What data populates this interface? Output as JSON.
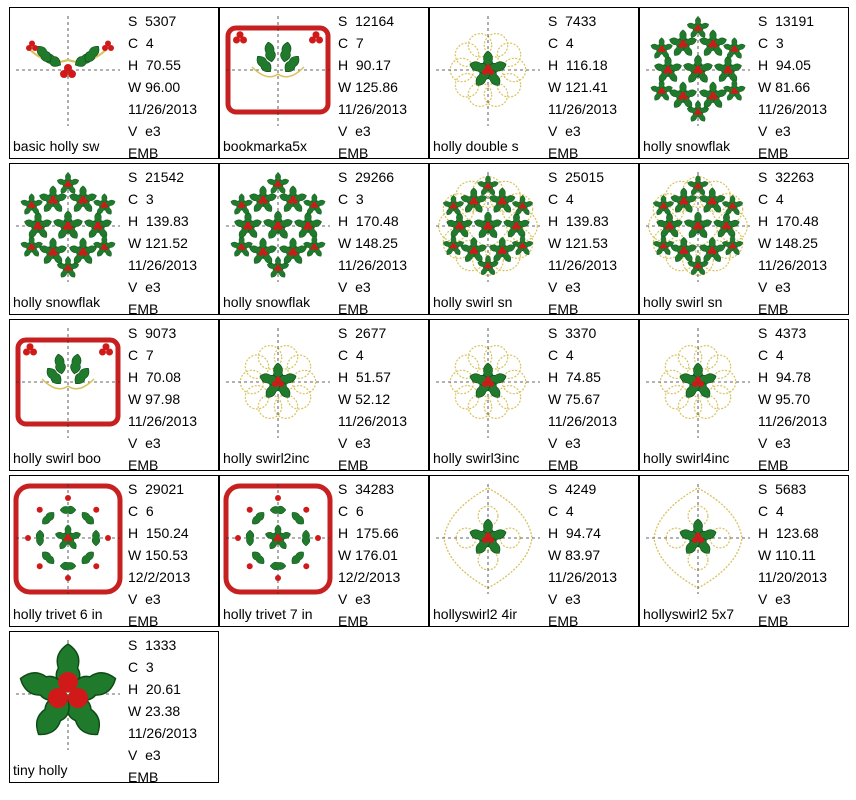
{
  "colors": {
    "border": "#000000",
    "holly_green": "#1f7a2c",
    "berry_red": "#d01a1a",
    "gold": "#d8c25a",
    "frame_red": "#c62020"
  },
  "designs": [
    {
      "name": "basic holly sw",
      "S": "5307",
      "C": "4",
      "H": "70.55",
      "W": "96.00",
      "date": "11/26/2013",
      "V": "e3",
      "format": "EMB",
      "icon": "holly-swag-icon"
    },
    {
      "name": "bookmarka5x",
      "S": "12164",
      "C": "7",
      "H": "90.17",
      "W": "125.86",
      "date": "11/26/2013",
      "V": "e3",
      "format": "EMB",
      "icon": "holly-frame-icon"
    },
    {
      "name": "holly double s",
      "S": "7433",
      "C": "4",
      "H": "116.18",
      "W": "121.41",
      "date": "11/26/2013",
      "V": "e3",
      "format": "EMB",
      "icon": "holly-swirl-circle-icon"
    },
    {
      "name": "holly snowflak",
      "S": "13191",
      "C": "3",
      "H": "94.05",
      "W": "81.66",
      "date": "11/26/2013",
      "V": "e3",
      "format": "EMB",
      "icon": "holly-snowflake-icon"
    },
    {
      "name": "holly snowflak",
      "S": "21542",
      "C": "3",
      "H": "139.83",
      "W": "121.52",
      "date": "11/26/2013",
      "V": "e3",
      "format": "EMB",
      "icon": "holly-snowflake-icon"
    },
    {
      "name": "holly snowflak",
      "S": "29266",
      "C": "3",
      "H": "170.48",
      "W": "148.25",
      "date": "11/26/2013",
      "V": "e3",
      "format": "EMB",
      "icon": "holly-snowflake-icon"
    },
    {
      "name": "holly swirl  sn",
      "S": "25015",
      "C": "4",
      "H": "139.83",
      "W": "121.53",
      "date": "11/26/2013",
      "V": "e3",
      "format": "EMB",
      "icon": "holly-swirl-snowflake-icon"
    },
    {
      "name": "holly swirl  sn",
      "S": "32263",
      "C": "4",
      "H": "170.48",
      "W": "148.25",
      "date": "11/26/2013",
      "V": "e3",
      "format": "EMB",
      "icon": "holly-swirl-snowflake-icon"
    },
    {
      "name": "holly swirl boo",
      "S": "9073",
      "C": "7",
      "H": "70.08",
      "W": "97.98",
      "date": "11/26/2013",
      "V": "e3",
      "format": "EMB",
      "icon": "holly-frame-icon"
    },
    {
      "name": "holly swirl2inc",
      "S": "2677",
      "C": "4",
      "H": "51.57",
      "W": "52.12",
      "date": "11/26/2013",
      "V": "e3",
      "format": "EMB",
      "icon": "holly-swirl-circle-icon"
    },
    {
      "name": "holly swirl3inc",
      "S": "3370",
      "C": "4",
      "H": "74.85",
      "W": "75.67",
      "date": "11/26/2013",
      "V": "e3",
      "format": "EMB",
      "icon": "holly-swirl-circle-icon"
    },
    {
      "name": "holly swirl4inc",
      "S": "4373",
      "C": "4",
      "H": "94.78",
      "W": "95.70",
      "date": "11/26/2013",
      "V": "e3",
      "format": "EMB",
      "icon": "holly-swirl-circle-icon"
    },
    {
      "name": "holly trivet 6 in",
      "S": "29021",
      "C": "6",
      "H": "150.24",
      "W": "150.53",
      "date": "12/2/2013",
      "V": "e3",
      "format": "EMB",
      "icon": "holly-trivet-icon"
    },
    {
      "name": "holly trivet 7 in",
      "S": "34283",
      "C": "6",
      "H": "175.66",
      "W": "176.01",
      "date": "12/2/2013",
      "V": "e3",
      "format": "EMB",
      "icon": "holly-trivet-icon"
    },
    {
      "name": "hollyswirl2 4ir",
      "S": "4249",
      "C": "4",
      "H": "94.74",
      "W": "83.97",
      "date": "11/26/2013",
      "V": "e3",
      "format": "EMB",
      "icon": "holly-swirl-diamond-icon"
    },
    {
      "name": "hollyswirl2 5x7",
      "S": "5683",
      "C": "4",
      "H": "123.68",
      "W": "110.11",
      "date": "11/20/2013",
      "V": "e3",
      "format": "EMB",
      "icon": "holly-swirl-diamond-icon"
    },
    {
      "name": "tiny holly",
      "S": "1333",
      "C": "3",
      "H": "20.61",
      "W": "23.38",
      "date": "11/26/2013",
      "V": "e3",
      "format": "EMB",
      "icon": "tiny-holly-icon"
    }
  ]
}
